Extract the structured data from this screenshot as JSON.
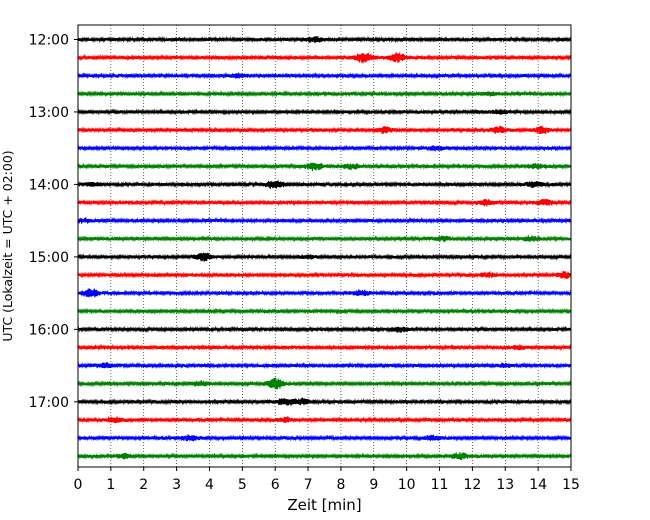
{
  "chart_data": {
    "type": "line",
    "title": "",
    "xlabel": "Zeit  [min]",
    "ylabel": "UTC (Lokalzeit = UTC + 02:00)",
    "xlim": [
      0,
      15
    ],
    "x_ticks": [
      "0",
      "1",
      "2",
      "3",
      "4",
      "5",
      "6",
      "7",
      "8",
      "9",
      "10",
      "11",
      "12",
      "13",
      "14",
      "15"
    ],
    "y_ticks": [
      "12:00",
      "13:00",
      "14:00",
      "15:00",
      "16:00",
      "17:00"
    ],
    "trace_interval_min": 15,
    "grid": "vertical dotted",
    "color_cycle": [
      "#000000",
      "#ff0000",
      "#0000ff",
      "#008000"
    ],
    "series": [
      {
        "start": "12:00",
        "color": "#000000",
        "bursts": [
          [
            7.2,
            1.7
          ]
        ]
      },
      {
        "start": "12:15",
        "color": "#ff0000",
        "bursts": [
          [
            8.7,
            2.6
          ],
          [
            9.7,
            2.4
          ]
        ]
      },
      {
        "start": "12:30",
        "color": "#0000ff",
        "bursts": [
          [
            4.9,
            1.2
          ]
        ]
      },
      {
        "start": "12:45",
        "color": "#008000",
        "bursts": [
          [
            12.5,
            1.1
          ]
        ]
      },
      {
        "start": "13:00",
        "color": "#000000",
        "bursts": [
          [
            12.8,
            1.0
          ]
        ]
      },
      {
        "start": "13:15",
        "color": "#ff0000",
        "bursts": [
          [
            9.3,
            1.6
          ],
          [
            12.8,
            1.8
          ],
          [
            14.1,
            1.8
          ]
        ]
      },
      {
        "start": "13:30",
        "color": "#0000ff",
        "bursts": [
          [
            10.9,
            1.2
          ]
        ]
      },
      {
        "start": "13:45",
        "color": "#008000",
        "bursts": [
          [
            7.2,
            2.0
          ],
          [
            8.3,
            1.4
          ],
          [
            14.0,
            1.3
          ]
        ]
      },
      {
        "start": "14:00",
        "color": "#000000",
        "bursts": [
          [
            0.4,
            1.0
          ],
          [
            6.0,
            2.3
          ],
          [
            13.9,
            1.8
          ]
        ]
      },
      {
        "start": "14:15",
        "color": "#ff0000",
        "bursts": [
          [
            12.4,
            1.5
          ],
          [
            14.2,
            1.6
          ]
        ]
      },
      {
        "start": "14:30",
        "color": "#0000ff",
        "bursts": [
          [
            0.2,
            1.0
          ]
        ]
      },
      {
        "start": "14:45",
        "color": "#008000",
        "bursts": [
          [
            11.1,
            1.2
          ],
          [
            13.8,
            1.3
          ]
        ]
      },
      {
        "start": "15:00",
        "color": "#000000",
        "bursts": [
          [
            3.8,
            2.2
          ],
          [
            7.0,
            1.0
          ]
        ]
      },
      {
        "start": "15:15",
        "color": "#ff0000",
        "bursts": [
          [
            12.5,
            1.1
          ],
          [
            14.8,
            1.6
          ]
        ]
      },
      {
        "start": "15:30",
        "color": "#0000ff",
        "bursts": [
          [
            0.4,
            2.2
          ],
          [
            8.6,
            1.4
          ]
        ]
      },
      {
        "start": "15:45",
        "color": "#008000",
        "bursts": []
      },
      {
        "start": "16:00",
        "color": "#000000",
        "bursts": [
          [
            9.8,
            1.2
          ]
        ]
      },
      {
        "start": "16:15",
        "color": "#ff0000",
        "bursts": [
          [
            13.4,
            1.0
          ]
        ]
      },
      {
        "start": "16:30",
        "color": "#0000ff",
        "bursts": [
          [
            0.8,
            1.3
          ],
          [
            13.0,
            1.0
          ]
        ]
      },
      {
        "start": "16:45",
        "color": "#008000",
        "bursts": [
          [
            3.7,
            1.4
          ],
          [
            6.0,
            3.0
          ]
        ]
      },
      {
        "start": "17:00",
        "color": "#000000",
        "bursts": [
          [
            6.3,
            1.8
          ],
          [
            6.8,
            1.6
          ]
        ]
      },
      {
        "start": "17:15",
        "color": "#ff0000",
        "bursts": [
          [
            1.1,
            1.4
          ],
          [
            6.3,
            1.2
          ]
        ]
      },
      {
        "start": "17:30",
        "color": "#0000ff",
        "bursts": [
          [
            3.4,
            1.4
          ],
          [
            10.8,
            1.2
          ]
        ]
      },
      {
        "start": "17:45",
        "color": "#008000",
        "bursts": [
          [
            1.4,
            1.3
          ],
          [
            11.6,
            1.6
          ]
        ]
      }
    ]
  }
}
